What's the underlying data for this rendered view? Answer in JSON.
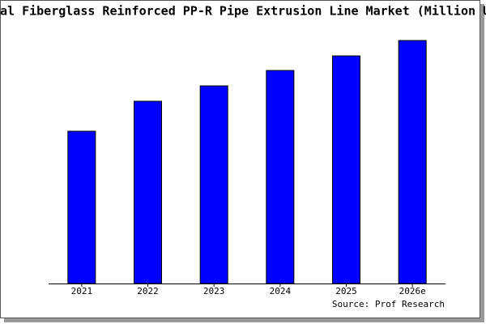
{
  "chart_data": {
    "type": "bar",
    "title": "al Fiberglass Reinforced PP-R Pipe Extrusion Line Market (Million U",
    "categories": [
      "2021",
      "2022",
      "2023",
      "2024",
      "2025",
      "2026e"
    ],
    "values": [
      188,
      225,
      244,
      263,
      281,
      300
    ],
    "color": "#0000ff",
    "source": "Source: Prof Research"
  }
}
